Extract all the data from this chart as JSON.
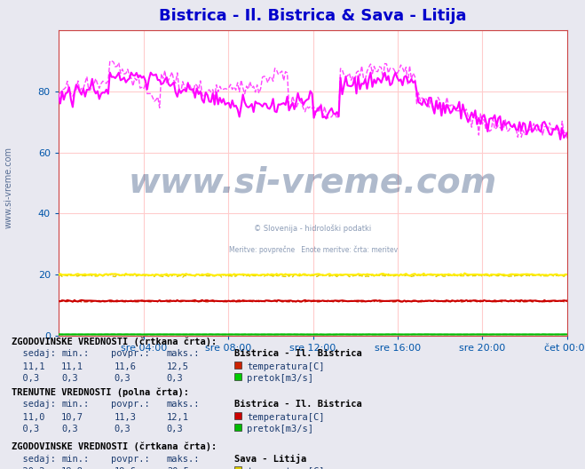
{
  "title": "Bistrica - Il. Bistrica & Sava - Litija",
  "title_color": "#0000cc",
  "bg_color": "#e8e8f0",
  "plot_bg_color": "#ffffff",
  "x_tick_labels": [
    "sre 04:00",
    "sre 08:00",
    "sre 12:00",
    "sre 16:00",
    "sre 20:00",
    "čet 00:00"
  ],
  "x_tick_positions": [
    0.167,
    0.333,
    0.5,
    0.667,
    0.833,
    1.0
  ],
  "ylim": [
    0,
    100
  ],
  "yticks": [
    0,
    20,
    40,
    60,
    80
  ],
  "grid_color": "#ffcccc",
  "watermark": "www.si-vreme.com",
  "watermark_color": "#1a3a6e",
  "table_text_color": "#1a3a6e",
  "n_points": 288,
  "colors": {
    "bistrica_temp_hist": "#cc2200",
    "bistrica_pretok_hist": "#00cc00",
    "sava_temp_hist": "#ddcc00",
    "sava_pretok_hist": "#ff44ff",
    "bistrica_temp_curr": "#cc0000",
    "bistrica_pretok_curr": "#00bb00",
    "sava_temp_curr": "#ffee00",
    "sava_pretok_curr": "#ff00ff"
  },
  "legend_squares": {
    "bistrica_temp_hist": "#cc2200",
    "bistrica_pretok_hist": "#00cc00",
    "bistrica_temp_curr": "#cc0000",
    "bistrica_pretok_curr": "#00bb00",
    "sava_temp_hist": "#ddcc00",
    "sava_pretok_hist": "#ff44ff",
    "sava_temp_curr": "#ffff00",
    "sava_pretok_curr": "#ff00ff"
  }
}
